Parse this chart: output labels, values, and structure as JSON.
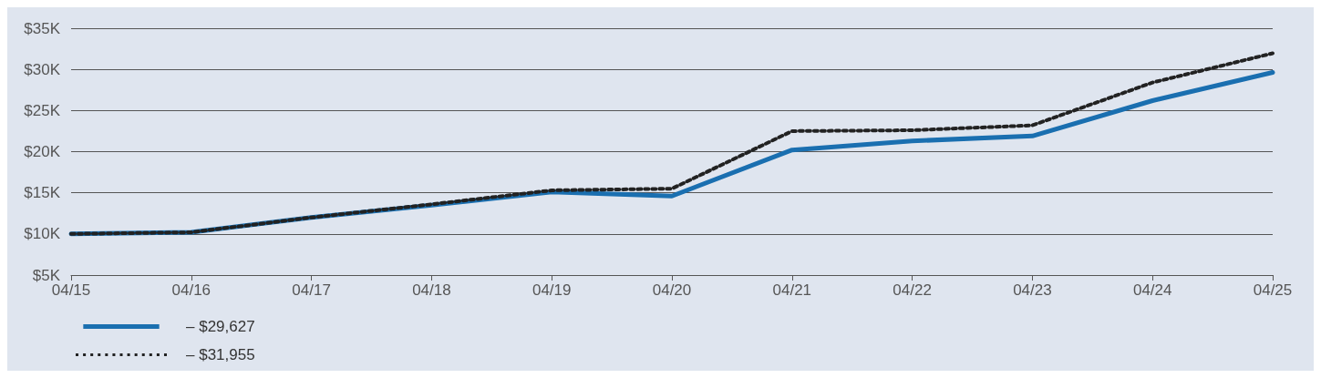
{
  "chart_data": {
    "type": "line",
    "categories": [
      "04/15",
      "04/16",
      "04/17",
      "04/18",
      "04/19",
      "04/20",
      "04/21",
      "04/22",
      "04/23",
      "04/24",
      "04/25"
    ],
    "series": [
      {
        "name": "– $29,627",
        "color": "#1a6fb0",
        "line_style": "solid",
        "values": [
          10000,
          10200,
          12000,
          13500,
          15100,
          14600,
          20200,
          21300,
          21900,
          26200,
          29627
        ]
      },
      {
        "name": "– $31,955",
        "color": "#222222",
        "line_style": "dotted",
        "values": [
          10000,
          10200,
          12000,
          13600,
          15300,
          15500,
          22500,
          22600,
          23200,
          28400,
          31955
        ]
      }
    ],
    "ylim": [
      5000,
      35000
    ],
    "yticks": [
      {
        "value": 5000,
        "label": "$5K"
      },
      {
        "value": 10000,
        "label": "$10K"
      },
      {
        "value": 15000,
        "label": "$15K"
      },
      {
        "value": 20000,
        "label": "$20K"
      },
      {
        "value": 25000,
        "label": "$25K"
      },
      {
        "value": 30000,
        "label": "$30K"
      },
      {
        "value": 35000,
        "label": "$35K"
      }
    ],
    "grid": "y",
    "legend": "bottom left",
    "marker": "none"
  }
}
